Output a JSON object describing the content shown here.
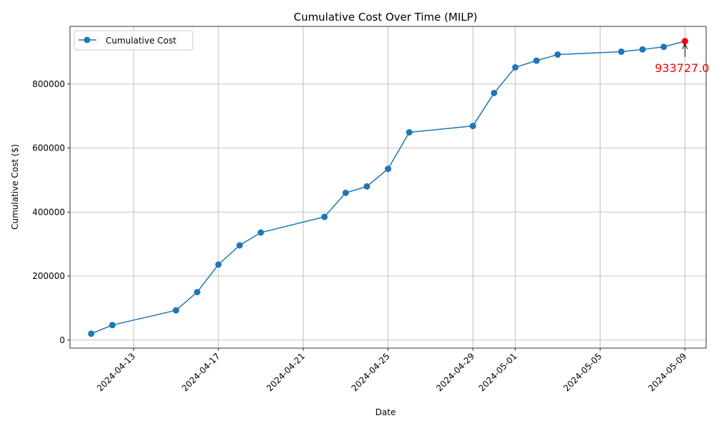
{
  "chart_data": {
    "type": "line",
    "title": "Cumulative Cost Over Time (MILP)",
    "xlabel": "Date",
    "ylabel": "Cumulative Cost ($)",
    "x_ticks": [
      "2024-04-13",
      "2024-04-17",
      "2024-04-21",
      "2024-04-25",
      "2024-04-29",
      "2024-05-01",
      "2024-05-05",
      "2024-05-09"
    ],
    "y_ticks": [
      0,
      200000,
      400000,
      600000,
      800000
    ],
    "xlim": [
      "2024-04-10",
      "2024-05-10"
    ],
    "ylim": [
      -25000,
      980000
    ],
    "grid": true,
    "legend_position": "top-left",
    "series": [
      {
        "name": "Cumulative Cost",
        "color": "#1f77b4",
        "marker": "circle",
        "points": [
          {
            "x": "2024-04-11",
            "y": 20000
          },
          {
            "x": "2024-04-12",
            "y": 47000
          },
          {
            "x": "2024-04-15",
            "y": 93000
          },
          {
            "x": "2024-04-16",
            "y": 150000
          },
          {
            "x": "2024-04-17",
            "y": 236000
          },
          {
            "x": "2024-04-18",
            "y": 296000
          },
          {
            "x": "2024-04-19",
            "y": 336000
          },
          {
            "x": "2024-04-22",
            "y": 385000
          },
          {
            "x": "2024-04-23",
            "y": 460000
          },
          {
            "x": "2024-04-24",
            "y": 480000
          },
          {
            "x": "2024-04-25",
            "y": 535000
          },
          {
            "x": "2024-04-26",
            "y": 649000
          },
          {
            "x": "2024-04-29",
            "y": 669000
          },
          {
            "x": "2024-04-30",
            "y": 772000
          },
          {
            "x": "2024-05-01",
            "y": 852000
          },
          {
            "x": "2024-05-02",
            "y": 873000
          },
          {
            "x": "2024-05-03",
            "y": 892000
          },
          {
            "x": "2024-05-06",
            "y": 901000
          },
          {
            "x": "2024-05-07",
            "y": 908000
          },
          {
            "x": "2024-05-08",
            "y": 916000
          },
          {
            "x": "2024-05-09",
            "y": 933727
          }
        ]
      }
    ],
    "annotation": {
      "text": "933727.0",
      "x": "2024-05-09",
      "y": 933727,
      "color": "#ff0000"
    }
  }
}
